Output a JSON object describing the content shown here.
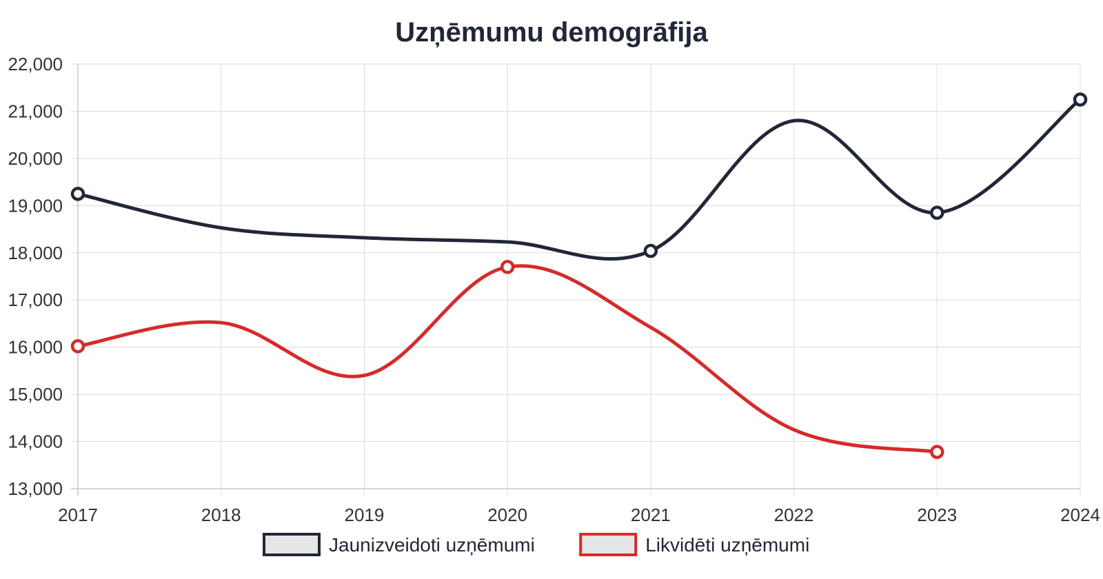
{
  "chart_data": {
    "type": "line",
    "title": "Uzņēmumu demogrāfija",
    "xlabel": "",
    "ylabel": "",
    "categories": [
      "2017",
      "2018",
      "2019",
      "2020",
      "2021",
      "2022",
      "2023",
      "2024"
    ],
    "ylim": [
      13000,
      22000
    ],
    "yticks": [
      "13,000",
      "14,000",
      "15,000",
      "16,000",
      "17,000",
      "18,000",
      "19,000",
      "20,000",
      "21,000",
      "22,000"
    ],
    "grid": true,
    "legend_position": "bottom",
    "series": [
      {
        "name": "Jaunizveidoti uzņēmumi",
        "color": "#222639",
        "values": [
          19250,
          18530,
          18320,
          18230,
          18040,
          20800,
          18850,
          21250
        ],
        "marked_points": [
          0,
          4,
          6,
          7
        ]
      },
      {
        "name": "Likvidēti uzņēmumi",
        "color": "#d62a2a",
        "values": [
          16020,
          16520,
          15400,
          17700,
          16420,
          14250,
          13780,
          null
        ],
        "marked_points": [
          0,
          3,
          6
        ]
      }
    ]
  }
}
